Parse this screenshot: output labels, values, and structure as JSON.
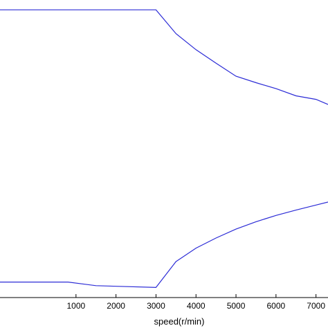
{
  "chart_data": {
    "type": "line",
    "title": "",
    "xlabel": "speed(r/min)",
    "ylabel": "",
    "xlim": [
      -900,
      7300
    ],
    "ylim": [
      0,
      1
    ],
    "x_ticks": [
      1000,
      2000,
      3000,
      4000,
      5000,
      6000,
      7000
    ],
    "x_tick_labels": [
      "1000",
      "2000",
      "3000",
      "4000",
      "5000",
      "6000",
      "7000"
    ],
    "grid": false,
    "line_color": "#2b2bd6",
    "series": [
      {
        "x": [
          -900,
          3000,
          3500,
          4000,
          4500,
          5000,
          5500,
          6000,
          6500,
          7000,
          7300
        ],
        "y": [
          0.967,
          0.967,
          0.887,
          0.833,
          0.788,
          0.744,
          0.722,
          0.702,
          0.678,
          0.666,
          0.649
        ]
      },
      {
        "x": [
          -900,
          800,
          1500,
          2000,
          3000,
          3500,
          4000,
          4500,
          5000,
          5500,
          6000,
          6500,
          7000,
          7300
        ],
        "y": [
          0.052,
          0.052,
          0.04,
          0.038,
          0.034,
          0.121,
          0.166,
          0.2,
          0.23,
          0.255,
          0.276,
          0.294,
          0.311,
          0.321
        ]
      }
    ]
  }
}
